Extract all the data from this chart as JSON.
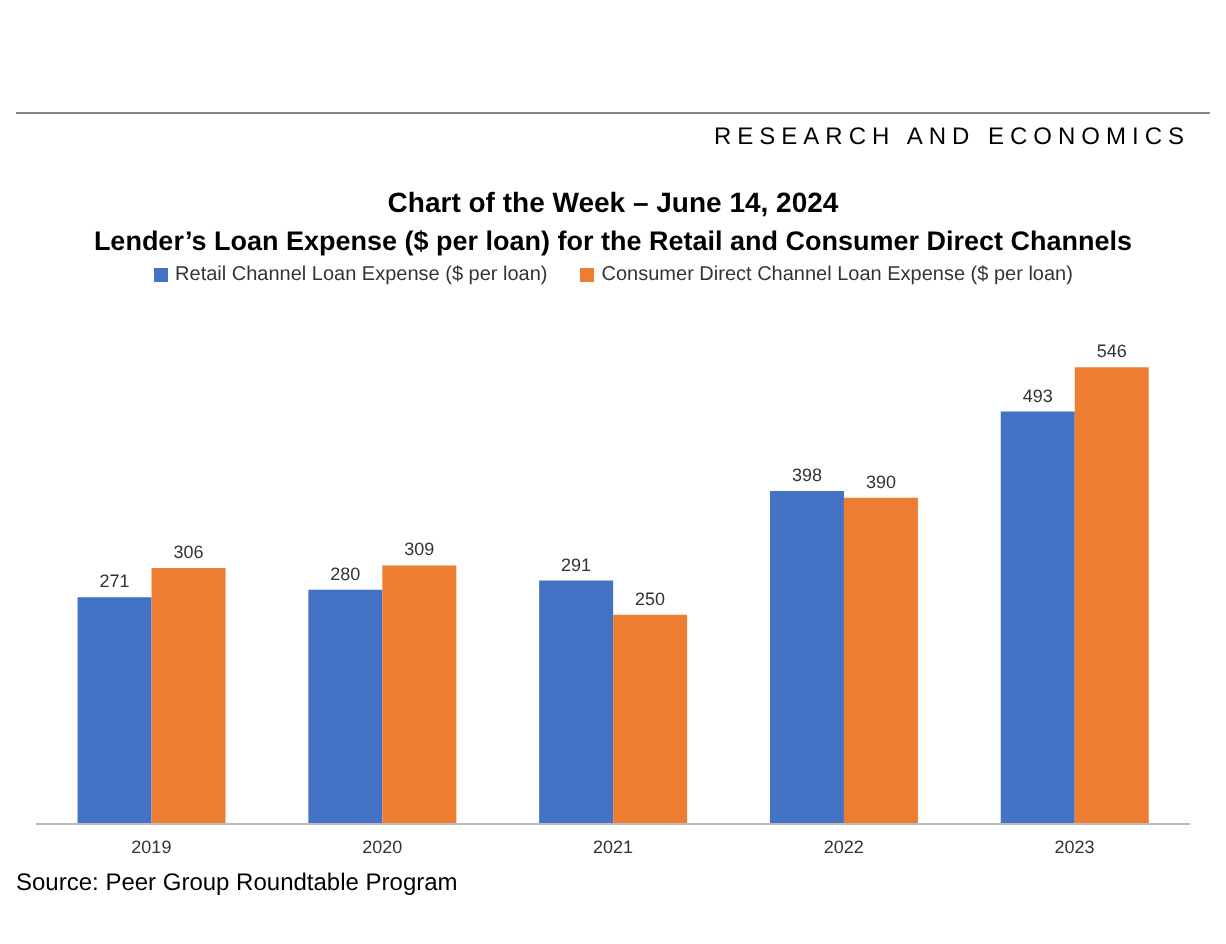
{
  "chart_data": {
    "type": "bar",
    "title": "Chart of the Week – June 14, 2024",
    "subtitle": "Lender’s Loan Expense ($ per loan) for the Retail and Consumer Direct Channels",
    "categories": [
      "2019",
      "2020",
      "2021",
      "2022",
      "2023"
    ],
    "series": [
      {
        "name": "Retail Channel Loan Expense ($ per loan)",
        "color": "#4472c4",
        "values": [
          271,
          280,
          291,
          398,
          493
        ]
      },
      {
        "name": "Consumer Direct Channel Loan Expense ($ per loan)",
        "color": "#ed7d31",
        "values": [
          306,
          309,
          250,
          390,
          546
        ]
      }
    ],
    "data_labels": true,
    "legend": "top",
    "grid": false,
    "annotations": [
      "RESEARCH AND ECONOMICS",
      "Source: Peer Group Roundtable Program"
    ]
  }
}
